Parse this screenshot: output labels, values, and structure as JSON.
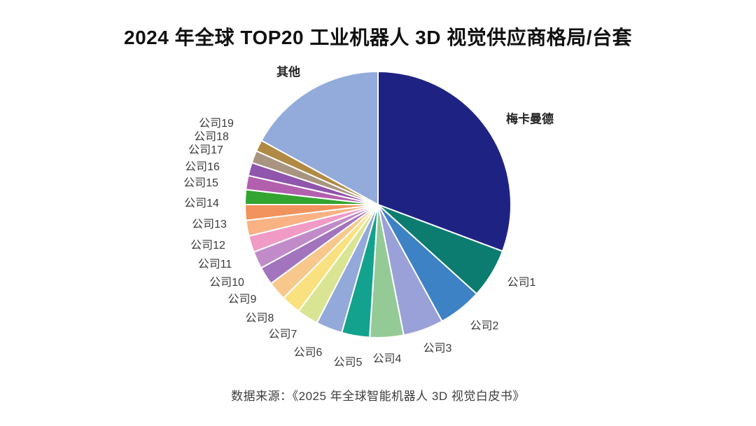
{
  "title": "2024 年全球 TOP20 工业机器人 3D 视觉供应商格局/台套",
  "source": "数据来源：《2025 年全球智能机器人 3D 视觉白皮书》",
  "chart_data": {
    "type": "pie",
    "title": "2024 年全球 TOP20 工业机器人 3D 视觉供应商格局/台套",
    "unit": "市场份额估算(%)，按台套",
    "start_angle": "12-oclock",
    "direction": "clockwise",
    "value_labels_shown": false,
    "legend_position": "none (external slice labels)",
    "slices": [
      {
        "label": "梅卡曼德",
        "value": 30.7,
        "color": "#1e2383"
      },
      {
        "label": "公司1",
        "value": 6.0,
        "color": "#0c7c70"
      },
      {
        "label": "公司2",
        "value": 5.3,
        "color": "#3d82c4"
      },
      {
        "label": "公司3",
        "value": 4.9,
        "color": "#9aa0d8"
      },
      {
        "label": "公司4",
        "value": 4.1,
        "color": "#94ca96"
      },
      {
        "label": "公司5",
        "value": 3.4,
        "color": "#13a28d"
      },
      {
        "label": "公司6",
        "value": 3.2,
        "color": "#93a9da"
      },
      {
        "label": "公司7",
        "value": 2.6,
        "color": "#d9e593"
      },
      {
        "label": "公司8",
        "value": 2.4,
        "color": "#f9e17f"
      },
      {
        "label": "公司9",
        "value": 2.3,
        "color": "#f7c78b"
      },
      {
        "label": "公司10",
        "value": 2.2,
        "color": "#a274bd"
      },
      {
        "label": "公司11",
        "value": 2.1,
        "color": "#c18bc9"
      },
      {
        "label": "公司12",
        "value": 2.0,
        "color": "#f09ac6"
      },
      {
        "label": "公司13",
        "value": 1.9,
        "color": "#f8b284"
      },
      {
        "label": "公司14",
        "value": 1.9,
        "color": "#f2925c"
      },
      {
        "label": "公司15",
        "value": 1.8,
        "color": "#33a430"
      },
      {
        "label": "公司16",
        "value": 1.7,
        "color": "#b25fae"
      },
      {
        "label": "公司17",
        "value": 1.6,
        "color": "#9055ac"
      },
      {
        "label": "公司18",
        "value": 1.5,
        "color": "#a89480"
      },
      {
        "label": "公司19",
        "value": 1.4,
        "color": "#b08a44"
      },
      {
        "label": "其他",
        "value": 17.0,
        "color": "#92abda"
      }
    ]
  }
}
